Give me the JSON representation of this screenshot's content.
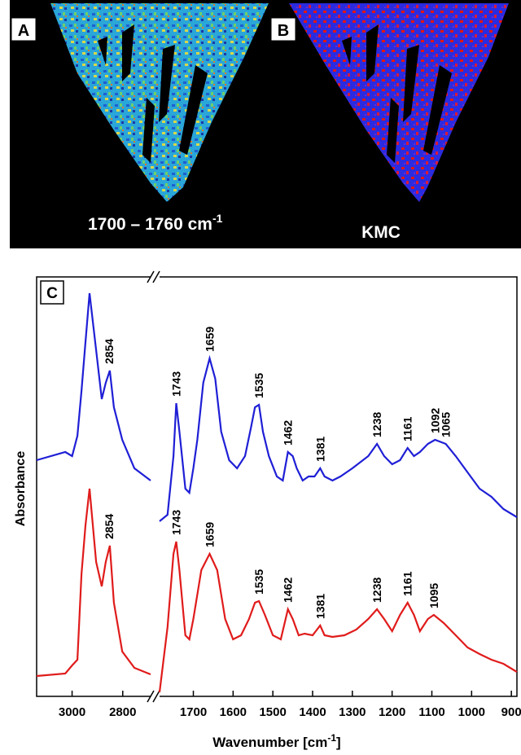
{
  "panels": {
    "a_label": "A",
    "b_label": "B",
    "a_caption": "1700 – 1760 cm",
    "a_caption_sup": "-1",
    "b_caption": "KMC"
  },
  "chart_data": {
    "type": "line",
    "panel_label": "C",
    "xlabel": "Wavenumber [cm",
    "xlabel_sup": "-1",
    "xlabel_end": "]",
    "ylabel": "Absorbance",
    "ylim": [
      0,
      515
    ],
    "segments": [
      {
        "xlim": [
          3140,
          2690
        ],
        "xticks": [
          3000,
          2800
        ]
      },
      {
        "xlim": [
          1785,
          886
        ],
        "xticks": [
          1700,
          1600,
          1500,
          1400,
          1300,
          1200,
          1100,
          1000,
          900
        ]
      }
    ],
    "series": [
      {
        "color": "#1f1fd6",
        "segments": [
          {
            "x": [
              3140,
              3027,
              3000,
              2979,
              2963,
              2947,
              2931,
              2905,
              2883,
              2867,
              2851,
              2835,
              2802,
              2754,
              2690
            ],
            "values": [
              290,
              300,
              295,
              320,
              375,
              435,
              495,
              425,
              365,
              385,
              400,
              355,
              315,
              280,
              265
            ]
          },
          {
            "x": [
              1785,
              1765,
              1750,
              1743,
              1735,
              1720,
              1710,
              1700,
              1690,
              1675,
              1659,
              1645,
              1630,
              1610,
              1590,
              1570,
              1555,
              1545,
              1535,
              1525,
              1510,
              1490,
              1475,
              1462,
              1450,
              1440,
              1425,
              1410,
              1395,
              1381,
              1370,
              1350,
              1330,
              1300,
              1260,
              1238,
              1220,
              1200,
              1180,
              1161,
              1145,
              1130,
              1110,
              1092,
              1065,
              1040,
              1010,
              980,
              950,
              920,
              886
            ],
            "values": [
              215,
              223,
              295,
              360,
              325,
              255,
              250,
              280,
              315,
              385,
              415,
              390,
              325,
              290,
              280,
              295,
              330,
              355,
              358,
              325,
              295,
              270,
              265,
              300,
              295,
              280,
              265,
              270,
              270,
              280,
              270,
              265,
              270,
              280,
              295,
              310,
              295,
              285,
              290,
              305,
              295,
              300,
              310,
              315,
              310,
              295,
              275,
              255,
              245,
              230,
              220
            ]
          }
        ],
        "peaks": [
          2854,
          1743,
          1659,
          1535,
          1462,
          1381,
          1238,
          1161,
          1092,
          1065
        ]
      },
      {
        "color": "#e01b1b",
        "segments": [
          {
            "x": [
              3140,
              3027,
              3000,
              2979,
              2963,
              2947,
              2931,
              2905,
              2883,
              2867,
              2851,
              2835,
              2802,
              2754,
              2690
            ],
            "values": [
              25,
              28,
              38,
              45,
              150,
              210,
              255,
              165,
              135,
              165,
              185,
              115,
              55,
              35,
              27
            ]
          },
          {
            "x": [
              1785,
              1765,
              1750,
              1743,
              1735,
              1720,
              1710,
              1700,
              1680,
              1659,
              1640,
              1620,
              1600,
              1580,
              1560,
              1545,
              1535,
              1520,
              1500,
              1480,
              1462,
              1450,
              1435,
              1420,
              1400,
              1381,
              1370,
              1350,
              1320,
              1290,
              1260,
              1238,
              1220,
              1200,
              1180,
              1161,
              1145,
              1130,
              1110,
              1095,
              1070,
              1040,
              1010,
              980,
              950,
              920,
              886
            ],
            "values": [
              5,
              85,
              175,
              190,
              155,
              75,
              70,
              95,
              155,
              175,
              155,
              95,
              70,
              75,
              95,
              115,
              117,
              100,
              75,
              70,
              107,
              95,
              75,
              77,
              75,
              87,
              75,
              73,
              75,
              82,
              95,
              107,
              95,
              80,
              100,
              115,
              100,
              80,
              95,
              100,
              90,
              75,
              60,
              52,
              45,
              40,
              30
            ]
          }
        ],
        "peaks": [
          2854,
          1743,
          1659,
          1535,
          1462,
          1381,
          1238,
          1161,
          1095
        ]
      }
    ]
  }
}
